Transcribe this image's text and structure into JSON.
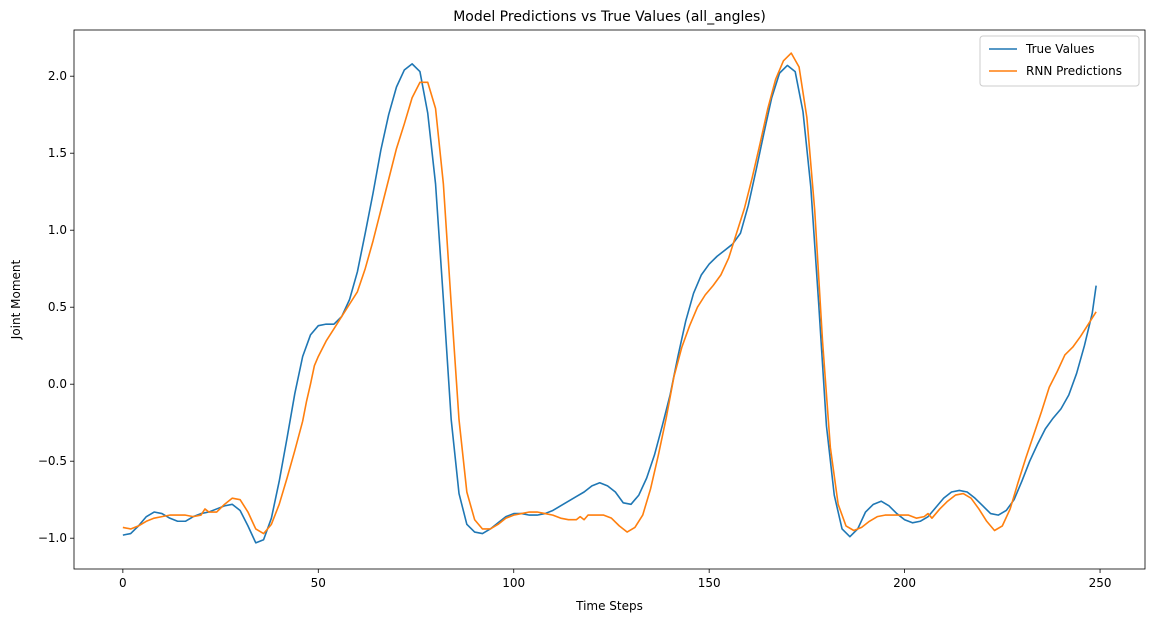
{
  "chart_data": {
    "type": "line",
    "title": "Model Predictions vs True Values (all_angles)",
    "xlabel": "Time Steps",
    "ylabel": "Joint Moment",
    "xlim": [
      -12.5,
      261.5
    ],
    "ylim": [
      -1.2,
      2.3
    ],
    "xticks": [
      0,
      50,
      100,
      150,
      200,
      250
    ],
    "yticks": [
      -1.0,
      -0.5,
      0.0,
      0.5,
      1.0,
      1.5,
      2.0
    ],
    "xtick_labels": [
      "0",
      "50",
      "100",
      "150",
      "200",
      "250"
    ],
    "ytick_labels": [
      "−1.0",
      "−0.5",
      "0.0",
      "0.5",
      "1.0",
      "1.5",
      "2.0"
    ],
    "grid": false,
    "legend_position": "top-right",
    "series": [
      {
        "name": "True Values",
        "color": "#1f77b4",
        "points": [
          [
            0,
            -0.98
          ],
          [
            2,
            -0.97
          ],
          [
            4,
            -0.92
          ],
          [
            6,
            -0.86
          ],
          [
            8,
            -0.83
          ],
          [
            10,
            -0.84
          ],
          [
            12,
            -0.87
          ],
          [
            14,
            -0.89
          ],
          [
            16,
            -0.89
          ],
          [
            18,
            -0.86
          ],
          [
            20,
            -0.84
          ],
          [
            22,
            -0.83
          ],
          [
            24,
            -0.81
          ],
          [
            26,
            -0.79
          ],
          [
            28,
            -0.78
          ],
          [
            30,
            -0.82
          ],
          [
            32,
            -0.92
          ],
          [
            34,
            -1.03
          ],
          [
            36,
            -1.01
          ],
          [
            38,
            -0.87
          ],
          [
            40,
            -0.63
          ],
          [
            42,
            -0.35
          ],
          [
            44,
            -0.06
          ],
          [
            46,
            0.18
          ],
          [
            48,
            0.32
          ],
          [
            50,
            0.38
          ],
          [
            52,
            0.39
          ],
          [
            54,
            0.39
          ],
          [
            56,
            0.44
          ],
          [
            58,
            0.55
          ],
          [
            60,
            0.73
          ],
          [
            62,
            0.98
          ],
          [
            64,
            1.24
          ],
          [
            66,
            1.52
          ],
          [
            68,
            1.75
          ],
          [
            70,
            1.93
          ],
          [
            72,
            2.04
          ],
          [
            74,
            2.08
          ],
          [
            76,
            2.03
          ],
          [
            78,
            1.76
          ],
          [
            80,
            1.3
          ],
          [
            82,
            0.55
          ],
          [
            84,
            -0.23
          ],
          [
            86,
            -0.71
          ],
          [
            88,
            -0.91
          ],
          [
            90,
            -0.96
          ],
          [
            92,
            -0.97
          ],
          [
            94,
            -0.94
          ],
          [
            96,
            -0.9
          ],
          [
            98,
            -0.86
          ],
          [
            100,
            -0.84
          ],
          [
            102,
            -0.84
          ],
          [
            104,
            -0.85
          ],
          [
            106,
            -0.85
          ],
          [
            108,
            -0.84
          ],
          [
            110,
            -0.82
          ],
          [
            112,
            -0.79
          ],
          [
            114,
            -0.76
          ],
          [
            116,
            -0.73
          ],
          [
            118,
            -0.7
          ],
          [
            120,
            -0.66
          ],
          [
            122,
            -0.64
          ],
          [
            124,
            -0.66
          ],
          [
            126,
            -0.7
          ],
          [
            128,
            -0.77
          ],
          [
            130,
            -0.78
          ],
          [
            132,
            -0.72
          ],
          [
            134,
            -0.61
          ],
          [
            136,
            -0.46
          ],
          [
            138,
            -0.27
          ],
          [
            140,
            -0.07
          ],
          [
            142,
            0.18
          ],
          [
            144,
            0.41
          ],
          [
            146,
            0.59
          ],
          [
            148,
            0.71
          ],
          [
            150,
            0.78
          ],
          [
            152,
            0.83
          ],
          [
            154,
            0.87
          ],
          [
            156,
            0.91
          ],
          [
            158,
            0.98
          ],
          [
            160,
            1.16
          ],
          [
            162,
            1.39
          ],
          [
            164,
            1.63
          ],
          [
            166,
            1.86
          ],
          [
            168,
            2.02
          ],
          [
            170,
            2.07
          ],
          [
            172,
            2.03
          ],
          [
            174,
            1.77
          ],
          [
            176,
            1.28
          ],
          [
            178,
            0.53
          ],
          [
            180,
            -0.27
          ],
          [
            182,
            -0.72
          ],
          [
            184,
            -0.94
          ],
          [
            186,
            -0.99
          ],
          [
            188,
            -0.94
          ],
          [
            190,
            -0.83
          ],
          [
            192,
            -0.78
          ],
          [
            194,
            -0.76
          ],
          [
            196,
            -0.79
          ],
          [
            198,
            -0.84
          ],
          [
            200,
            -0.88
          ],
          [
            202,
            -0.9
          ],
          [
            204,
            -0.89
          ],
          [
            206,
            -0.86
          ],
          [
            208,
            -0.8
          ],
          [
            210,
            -0.74
          ],
          [
            212,
            -0.7
          ],
          [
            214,
            -0.69
          ],
          [
            216,
            -0.7
          ],
          [
            218,
            -0.74
          ],
          [
            220,
            -0.79
          ],
          [
            222,
            -0.84
          ],
          [
            224,
            -0.85
          ],
          [
            226,
            -0.82
          ],
          [
            228,
            -0.75
          ],
          [
            230,
            -0.63
          ],
          [
            232,
            -0.5
          ],
          [
            234,
            -0.39
          ],
          [
            236,
            -0.29
          ],
          [
            238,
            -0.22
          ],
          [
            240,
            -0.16
          ],
          [
            242,
            -0.07
          ],
          [
            244,
            0.07
          ],
          [
            246,
            0.25
          ],
          [
            248,
            0.46
          ],
          [
            249,
            0.64
          ]
        ]
      },
      {
        "name": "RNN Predictions",
        "color": "#ff7f0e",
        "points": [
          [
            0,
            -0.93
          ],
          [
            2,
            -0.94
          ],
          [
            4,
            -0.92
          ],
          [
            6,
            -0.89
          ],
          [
            8,
            -0.87
          ],
          [
            10,
            -0.86
          ],
          [
            12,
            -0.85
          ],
          [
            14,
            -0.85
          ],
          [
            16,
            -0.85
          ],
          [
            18,
            -0.86
          ],
          [
            20,
            -0.85
          ],
          [
            21,
            -0.81
          ],
          [
            22,
            -0.83
          ],
          [
            24,
            -0.83
          ],
          [
            26,
            -0.78
          ],
          [
            28,
            -0.74
          ],
          [
            30,
            -0.75
          ],
          [
            32,
            -0.83
          ],
          [
            34,
            -0.94
          ],
          [
            36,
            -0.97
          ],
          [
            38,
            -0.91
          ],
          [
            40,
            -0.78
          ],
          [
            42,
            -0.61
          ],
          [
            44,
            -0.43
          ],
          [
            46,
            -0.24
          ],
          [
            47,
            -0.11
          ],
          [
            48,
            0.0
          ],
          [
            49,
            0.12
          ],
          [
            50,
            0.18
          ],
          [
            52,
            0.28
          ],
          [
            54,
            0.36
          ],
          [
            56,
            0.44
          ],
          [
            58,
            0.52
          ],
          [
            60,
            0.6
          ],
          [
            62,
            0.75
          ],
          [
            64,
            0.93
          ],
          [
            66,
            1.13
          ],
          [
            68,
            1.33
          ],
          [
            70,
            1.53
          ],
          [
            72,
            1.69
          ],
          [
            74,
            1.86
          ],
          [
            76,
            1.96
          ],
          [
            78,
            1.96
          ],
          [
            80,
            1.79
          ],
          [
            82,
            1.3
          ],
          [
            84,
            0.52
          ],
          [
            86,
            -0.23
          ],
          [
            88,
            -0.7
          ],
          [
            90,
            -0.88
          ],
          [
            92,
            -0.94
          ],
          [
            94,
            -0.94
          ],
          [
            96,
            -0.91
          ],
          [
            98,
            -0.87
          ],
          [
            100,
            -0.85
          ],
          [
            102,
            -0.84
          ],
          [
            104,
            -0.83
          ],
          [
            106,
            -0.83
          ],
          [
            108,
            -0.84
          ],
          [
            110,
            -0.85
          ],
          [
            112,
            -0.87
          ],
          [
            114,
            -0.88
          ],
          [
            116,
            -0.88
          ],
          [
            117,
            -0.86
          ],
          [
            118,
            -0.88
          ],
          [
            119,
            -0.85
          ],
          [
            121,
            -0.85
          ],
          [
            123,
            -0.85
          ],
          [
            125,
            -0.87
          ],
          [
            127,
            -0.92
          ],
          [
            129,
            -0.96
          ],
          [
            131,
            -0.93
          ],
          [
            133,
            -0.85
          ],
          [
            135,
            -0.68
          ],
          [
            137,
            -0.46
          ],
          [
            139,
            -0.22
          ],
          [
            141,
            0.05
          ],
          [
            143,
            0.24
          ],
          [
            145,
            0.38
          ],
          [
            147,
            0.5
          ],
          [
            149,
            0.58
          ],
          [
            151,
            0.64
          ],
          [
            153,
            0.71
          ],
          [
            155,
            0.82
          ],
          [
            157,
            0.98
          ],
          [
            159,
            1.14
          ],
          [
            161,
            1.34
          ],
          [
            163,
            1.56
          ],
          [
            165,
            1.79
          ],
          [
            167,
            1.98
          ],
          [
            169,
            2.1
          ],
          [
            171,
            2.15
          ],
          [
            173,
            2.06
          ],
          [
            175,
            1.73
          ],
          [
            177,
            1.13
          ],
          [
            179,
            0.28
          ],
          [
            181,
            -0.41
          ],
          [
            183,
            -0.78
          ],
          [
            185,
            -0.92
          ],
          [
            187,
            -0.95
          ],
          [
            189,
            -0.93
          ],
          [
            191,
            -0.89
          ],
          [
            193,
            -0.86
          ],
          [
            195,
            -0.85
          ],
          [
            197,
            -0.85
          ],
          [
            199,
            -0.85
          ],
          [
            201,
            -0.85
          ],
          [
            203,
            -0.87
          ],
          [
            205,
            -0.86
          ],
          [
            206,
            -0.84
          ],
          [
            207,
            -0.87
          ],
          [
            209,
            -0.81
          ],
          [
            211,
            -0.76
          ],
          [
            213,
            -0.72
          ],
          [
            215,
            -0.71
          ],
          [
            217,
            -0.74
          ],
          [
            219,
            -0.81
          ],
          [
            221,
            -0.89
          ],
          [
            223,
            -0.95
          ],
          [
            225,
            -0.92
          ],
          [
            227,
            -0.81
          ],
          [
            229,
            -0.64
          ],
          [
            231,
            -0.48
          ],
          [
            233,
            -0.33
          ],
          [
            235,
            -0.18
          ],
          [
            237,
            -0.02
          ],
          [
            239,
            0.08
          ],
          [
            241,
            0.19
          ],
          [
            243,
            0.24
          ],
          [
            245,
            0.31
          ],
          [
            247,
            0.39
          ],
          [
            249,
            0.47
          ]
        ]
      }
    ]
  }
}
